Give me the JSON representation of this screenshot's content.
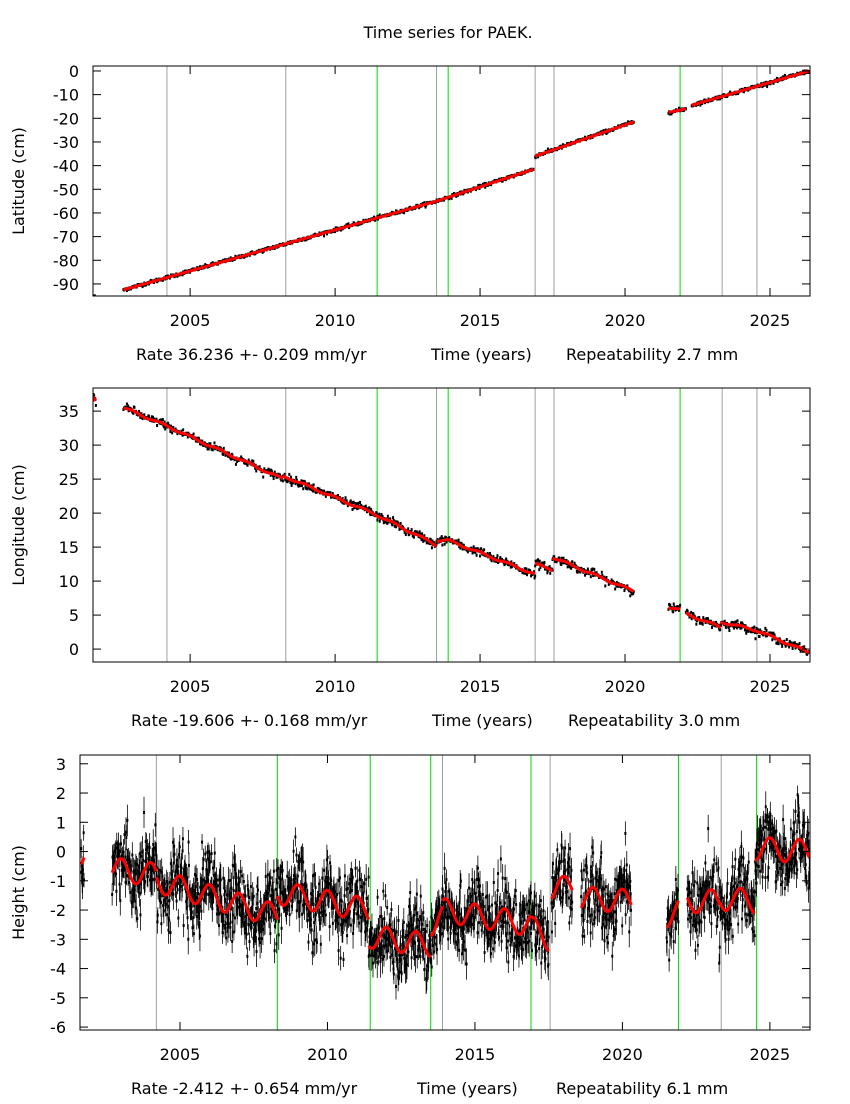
{
  "title": "Time series for PAEK.",
  "chart_data": [
    {
      "type": "scatter",
      "ylabel": "Latitude (cm)",
      "xlabel": "Time (years)",
      "rate_label": "Rate 36.236 +- 0.209 mm/yr",
      "repeatability_label": "Repeatability 2.7 mm",
      "xlim": [
        2001.65,
        2026.38
      ],
      "ylim": [
        -95.1,
        2.1
      ],
      "xticks": [
        2005,
        2010,
        2015,
        2020,
        2025
      ],
      "yticks": [
        0,
        -10,
        -20,
        -30,
        -40,
        -50,
        -60,
        -70,
        -80,
        -90
      ],
      "seasonal_amplitude": 0,
      "noise": 0.35,
      "segments": [
        [
          2001.65,
          -95.5,
          2001.72,
          -95.5
        ],
        [
          2002.7,
          -92.5,
          2013.5,
          -55
        ],
        [
          2013.5,
          -55,
          2016.85,
          -41.5
        ],
        [
          2016.9,
          -36,
          2020.3,
          -21.5
        ],
        [
          2021.5,
          -17.5,
          2022.1,
          -16
        ],
        [
          2022.3,
          -14.5,
          2026.35,
          0
        ]
      ],
      "events": [
        {
          "year": 2004.2,
          "color": "#a0a0a0"
        },
        {
          "year": 2008.3,
          "color": "#a0a0a0"
        },
        {
          "year": 2011.45,
          "color": "#00dd00"
        },
        {
          "year": 2013.5,
          "color": "#a0a0a0"
        },
        {
          "year": 2013.9,
          "color": "#00dd00"
        },
        {
          "year": 2016.9,
          "color": "#a0a0a0"
        },
        {
          "year": 2017.55,
          "color": "#a0a0a0"
        },
        {
          "year": 2021.9,
          "color": "#00dd00"
        },
        {
          "year": 2023.35,
          "color": "#a0a0a0"
        },
        {
          "year": 2024.55,
          "color": "#a0a0a0"
        }
      ]
    },
    {
      "type": "scatter",
      "ylabel": "Longitude (cm)",
      "xlabel": "Time (years)",
      "rate_label": "Rate -19.606 +- 0.168 mm/yr",
      "repeatability_label": "Repeatability 3.0 mm",
      "xlim": [
        2001.65,
        2026.38
      ],
      "ylim": [
        -1.9,
        38.4
      ],
      "xticks": [
        2005,
        2010,
        2015,
        2020,
        2025
      ],
      "yticks": [
        35,
        30,
        25,
        20,
        15,
        10,
        5,
        0
      ],
      "seasonal_amplitude": 0.15,
      "noise": 0.3,
      "segments": [
        [
          2001.65,
          37.2,
          2001.75,
          36.5
        ],
        [
          2002.7,
          35.5,
          2004.2,
          32.8
        ],
        [
          2004.2,
          32.8,
          2008.2,
          25
        ],
        [
          2008.2,
          25.5,
          2011.4,
          19.8
        ],
        [
          2011.4,
          19.8,
          2013.5,
          15.3
        ],
        [
          2013.5,
          16,
          2013.9,
          16
        ],
        [
          2013.9,
          16,
          2016.9,
          11
        ],
        [
          2016.9,
          12.5,
          2017.5,
          11.7
        ],
        [
          2017.5,
          13.5,
          2020.3,
          8.5
        ],
        [
          2021.5,
          6.2,
          2021.9,
          5.8
        ],
        [
          2022.1,
          5.2,
          2023.3,
          3.2
        ],
        [
          2023.3,
          4,
          2024.5,
          2.8
        ],
        [
          2024.5,
          2.8,
          2026.35,
          -0.5
        ]
      ],
      "events": [
        {
          "year": 2004.2,
          "color": "#a0a0a0"
        },
        {
          "year": 2008.3,
          "color": "#a0a0a0"
        },
        {
          "year": 2011.45,
          "color": "#00dd00"
        },
        {
          "year": 2013.5,
          "color": "#a0a0a0"
        },
        {
          "year": 2013.9,
          "color": "#00dd00"
        },
        {
          "year": 2016.9,
          "color": "#a0a0a0"
        },
        {
          "year": 2017.55,
          "color": "#a0a0a0"
        },
        {
          "year": 2021.9,
          "color": "#00dd00"
        },
        {
          "year": 2023.35,
          "color": "#a0a0a0"
        },
        {
          "year": 2024.55,
          "color": "#a0a0a0"
        }
      ]
    },
    {
      "type": "scatter",
      "ylabel": "Height (cm)",
      "xlabel": "Time (years)",
      "rate_label": "Rate -2.412 +- 0.654 mm/yr",
      "repeatability_label": "Repeatability 6.1 mm",
      "xlim": [
        2001.61,
        2026.36
      ],
      "ylim": [
        -6.1,
        3.3
      ],
      "xticks": [
        2005,
        2010,
        2015,
        2020,
        2025
      ],
      "yticks": [
        3,
        2,
        1,
        0,
        -1,
        -2,
        -3,
        -4,
        -5,
        -6
      ],
      "seasonal_amplitude": 0.4,
      "noise": 0.6,
      "segments": [
        [
          2001.65,
          -0.2,
          2001.75,
          -0.2
        ],
        [
          2002.7,
          -0.6,
          2004.2,
          -0.8
        ],
        [
          2004.2,
          -1.0,
          2008.3,
          -2.2
        ],
        [
          2008.3,
          -1.4,
          2011.4,
          -2.0
        ],
        [
          2011.4,
          -2.9,
          2013.5,
          -3.2
        ],
        [
          2013.5,
          -2.5,
          2013.9,
          -2.2
        ],
        [
          2013.9,
          -2.0,
          2016.9,
          -2.5
        ],
        [
          2016.9,
          -2.6,
          2017.5,
          -3.0
        ],
        [
          2017.6,
          -1.3,
          2018.3,
          -1.2
        ],
        [
          2018.6,
          -1.6,
          2020.3,
          -1.7
        ],
        [
          2021.5,
          -2.2,
          2021.9,
          -2.0
        ],
        [
          2022.2,
          -1.7,
          2023.3,
          -1.7
        ],
        [
          2023.3,
          -1.6,
          2024.5,
          -1.7
        ],
        [
          2024.5,
          0.1,
          2026.35,
          0.0
        ]
      ],
      "events": [
        {
          "year": 2004.2,
          "color": "#a0a0a0"
        },
        {
          "year": 2008.3,
          "color": "#00dd00"
        },
        {
          "year": 2011.45,
          "color": "#00dd00"
        },
        {
          "year": 2013.5,
          "color": "#00dd00"
        },
        {
          "year": 2013.9,
          "color": "#a0a0a0"
        },
        {
          "year": 2016.9,
          "color": "#00dd00"
        },
        {
          "year": 2017.55,
          "color": "#a0a0a0"
        },
        {
          "year": 2021.9,
          "color": "#00dd00"
        },
        {
          "year": 2023.35,
          "color": "#a0a0a0"
        },
        {
          "year": 2024.55,
          "color": "#00dd00"
        }
      ]
    }
  ]
}
